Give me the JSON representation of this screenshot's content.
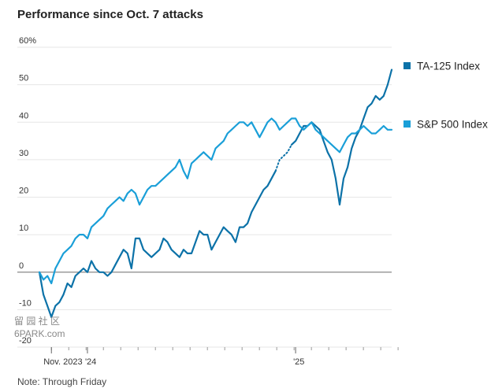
{
  "title": "Performance since Oct. 7 attacks",
  "note": "Note: Through Friday",
  "watermark": {
    "line1": "留 园 社 区",
    "line2": "6PARK.com"
  },
  "colors": {
    "ta125": "#0c72a8",
    "sp500": "#1a9fd8",
    "zero": "#888888",
    "grid": "#e6e6e6"
  },
  "chart_data": {
    "type": "line",
    "title": "Performance since Oct. 7 attacks",
    "y_unit": "%",
    "ylim": [
      -20,
      60
    ],
    "yticks": [
      -20,
      -10,
      0,
      10,
      20,
      30,
      40,
      50,
      60
    ],
    "ytick_labels": [
      "-20",
      "-10",
      "0",
      "10",
      "20",
      "30",
      "40",
      "50",
      "60%"
    ],
    "xlim": [
      0,
      88
    ],
    "xticks": [
      {
        "x": 3,
        "label": "Nov. 2023"
      },
      {
        "x": 12,
        "label": "'24"
      },
      {
        "x": 64,
        "label": "'25"
      }
    ],
    "grid": true,
    "legend_position": "right",
    "series": [
      {
        "name": "TA-125 Index",
        "key": "ta125",
        "values": [
          0,
          -6,
          -9,
          -12,
          -9,
          -8,
          -6,
          -3,
          -4,
          -1,
          0,
          1,
          0,
          3,
          1,
          0,
          0,
          -1,
          0,
          2,
          4,
          6,
          5,
          1,
          9,
          9,
          6,
          5,
          4,
          5,
          6,
          9,
          8,
          6,
          5,
          4,
          6,
          5,
          5,
          8,
          11,
          10,
          10,
          6,
          8,
          10,
          12,
          11,
          10,
          8,
          12,
          12,
          13,
          16,
          18,
          20,
          22,
          23,
          25,
          27,
          30,
          31,
          32,
          34,
          35,
          37,
          39,
          39,
          40,
          39,
          38,
          35,
          32,
          30,
          25,
          18,
          25,
          28,
          33,
          36,
          38,
          41,
          44,
          45,
          47,
          46,
          47,
          50,
          54
        ],
        "segments": [
          [
            0,
            59
          ],
          [
            59,
            63
          ],
          [
            63,
            88
          ]
        ],
        "segment_styles": [
          "solid",
          "dotted",
          "solid"
        ]
      },
      {
        "name": "S&P 500 Index",
        "key": "sp500",
        "values": [
          0,
          -2,
          -1,
          -3,
          1,
          3,
          5,
          6,
          7,
          9,
          10,
          10,
          9,
          12,
          13,
          14,
          15,
          17,
          18,
          19,
          20,
          19,
          21,
          22,
          21,
          18,
          20,
          22,
          23,
          23,
          24,
          25,
          26,
          27,
          28,
          30,
          27,
          25,
          29,
          30,
          31,
          32,
          31,
          30,
          33,
          34,
          35,
          37,
          38,
          39,
          40,
          40,
          39,
          40,
          38,
          36,
          38,
          40,
          41,
          40,
          38,
          39,
          40,
          41,
          41,
          39,
          38,
          39,
          40,
          38,
          37,
          36,
          35,
          34,
          33,
          32,
          34,
          36,
          37,
          37,
          38,
          39,
          38,
          37,
          37,
          38,
          39,
          38,
          38
        ]
      }
    ]
  },
  "legend": [
    {
      "key": "ta125",
      "label": "TA-125 Index"
    },
    {
      "key": "sp500",
      "label": "S&P 500 Index"
    }
  ]
}
